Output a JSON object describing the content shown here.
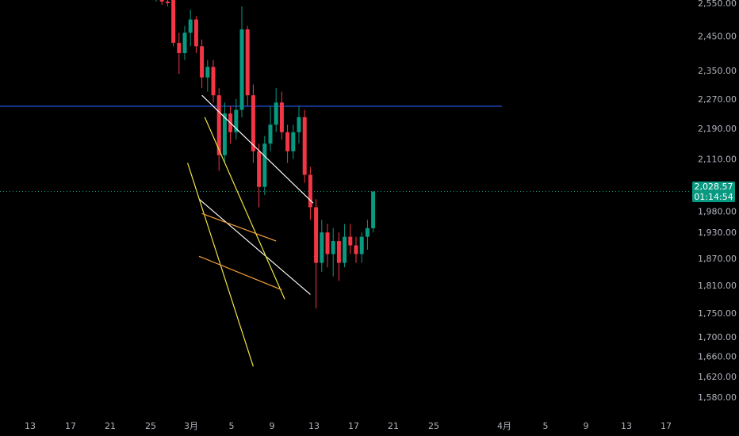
{
  "chart_data": {
    "type": "candlestick",
    "price_axis": {
      "ticks": [
        "2,550.00",
        "2,450.00",
        "2,350.00",
        "2,270.00",
        "2,190.00",
        "2,110.00",
        "1,980.00",
        "1,930.00",
        "1,870.00",
        "1,810.00",
        "1,750.00",
        "1,700.00",
        "1,660.00",
        "1,620.00",
        "1,580.00"
      ],
      "scale": "log"
    },
    "time_axis": {
      "ticks": [
        "13",
        "17",
        "21",
        "25",
        "3月",
        "5",
        "9",
        "13",
        "17",
        "21",
        "25",
        "4月",
        "5",
        "9",
        "13",
        "17"
      ]
    },
    "last_price": {
      "value": "2,028.57",
      "countdown": "01:14:54",
      "color": "#089981"
    },
    "horizontal_line": {
      "price": 2250,
      "color": "#2962ff"
    },
    "candles": [
      {
        "o": 2560,
        "h": 2570,
        "l": 2555,
        "c": 2565
      },
      {
        "o": 2570,
        "h": 2590,
        "l": 2545,
        "c": 2555
      },
      {
        "o": 2555,
        "h": 2565,
        "l": 2540,
        "c": 2550
      },
      {
        "o": 2560,
        "h": 2580,
        "l": 2420,
        "c": 2430
      },
      {
        "o": 2430,
        "h": 2460,
        "l": 2340,
        "c": 2400
      },
      {
        "o": 2400,
        "h": 2480,
        "l": 2380,
        "c": 2460
      },
      {
        "o": 2460,
        "h": 2530,
        "l": 2420,
        "c": 2500
      },
      {
        "o": 2500,
        "h": 2510,
        "l": 2400,
        "c": 2420
      },
      {
        "o": 2420,
        "h": 2440,
        "l": 2300,
        "c": 2330
      },
      {
        "o": 2330,
        "h": 2380,
        "l": 2290,
        "c": 2360
      },
      {
        "o": 2360,
        "h": 2380,
        "l": 2260,
        "c": 2280
      },
      {
        "o": 2280,
        "h": 2300,
        "l": 2080,
        "c": 2120
      },
      {
        "o": 2120,
        "h": 2260,
        "l": 2100,
        "c": 2230
      },
      {
        "o": 2230,
        "h": 2250,
        "l": 2150,
        "c": 2180
      },
      {
        "o": 2180,
        "h": 2270,
        "l": 2160,
        "c": 2240
      },
      {
        "o": 2240,
        "h": 2540,
        "l": 2220,
        "c": 2470
      },
      {
        "o": 2470,
        "h": 2480,
        "l": 2250,
        "c": 2280
      },
      {
        "o": 2280,
        "h": 2310,
        "l": 2100,
        "c": 2130
      },
      {
        "o": 2130,
        "h": 2150,
        "l": 1990,
        "c": 2040
      },
      {
        "o": 2040,
        "h": 2170,
        "l": 2020,
        "c": 2150
      },
      {
        "o": 2150,
        "h": 2250,
        "l": 2130,
        "c": 2200
      },
      {
        "o": 2200,
        "h": 2300,
        "l": 2180,
        "c": 2260
      },
      {
        "o": 2260,
        "h": 2290,
        "l": 2160,
        "c": 2180
      },
      {
        "o": 2180,
        "h": 2200,
        "l": 2100,
        "c": 2130
      },
      {
        "o": 2130,
        "h": 2200,
        "l": 2110,
        "c": 2180
      },
      {
        "o": 2180,
        "h": 2250,
        "l": 2150,
        "c": 2220
      },
      {
        "o": 2220,
        "h": 2240,
        "l": 2050,
        "c": 2070
      },
      {
        "o": 2070,
        "h": 2090,
        "l": 1960,
        "c": 1990
      },
      {
        "o": 1990,
        "h": 2010,
        "l": 1760,
        "c": 1860
      },
      {
        "o": 1860,
        "h": 1960,
        "l": 1840,
        "c": 1930
      },
      {
        "o": 1930,
        "h": 1950,
        "l": 1850,
        "c": 1880
      },
      {
        "o": 1880,
        "h": 1940,
        "l": 1830,
        "c": 1910
      },
      {
        "o": 1910,
        "h": 1930,
        "l": 1820,
        "c": 1860
      },
      {
        "o": 1860,
        "h": 1950,
        "l": 1850,
        "c": 1920
      },
      {
        "o": 1920,
        "h": 1950,
        "l": 1880,
        "c": 1900
      },
      {
        "o": 1900,
        "h": 1920,
        "l": 1860,
        "c": 1880
      },
      {
        "o": 1880,
        "h": 1930,
        "l": 1860,
        "c": 1920
      },
      {
        "o": 1920,
        "h": 1960,
        "l": 1890,
        "c": 1940
      },
      {
        "o": 1940,
        "h": 2030,
        "l": 1930,
        "c": 2028
      }
    ],
    "trendlines": [
      {
        "name": "white-upper",
        "color": "#ffffff",
        "from": {
          "t": 8.0,
          "p": 2280
        },
        "to": {
          "t": 27.5,
          "p": 2000
        }
      },
      {
        "name": "white-lower",
        "color": "#ffffff",
        "from": {
          "t": 7.5,
          "p": 2010
        },
        "to": {
          "t": 27.0,
          "p": 1790
        }
      },
      {
        "name": "yellow-upper",
        "color": "#f0e442",
        "from": {
          "t": 8.5,
          "p": 2220
        },
        "to": {
          "t": 22.5,
          "p": 1780
        }
      },
      {
        "name": "yellow-lower",
        "color": "#f0e442",
        "from": {
          "t": 5.5,
          "p": 2100
        },
        "to": {
          "t": 17.0,
          "p": 1640
        }
      },
      {
        "name": "orange-upper",
        "color": "#f7a13a",
        "from": {
          "t": 8.0,
          "p": 1975
        },
        "to": {
          "t": 21.0,
          "p": 1910
        }
      },
      {
        "name": "orange-lower",
        "color": "#f7a13a",
        "from": {
          "t": 7.5,
          "p": 1875
        },
        "to": {
          "t": 22.0,
          "p": 1800
        }
      }
    ]
  }
}
